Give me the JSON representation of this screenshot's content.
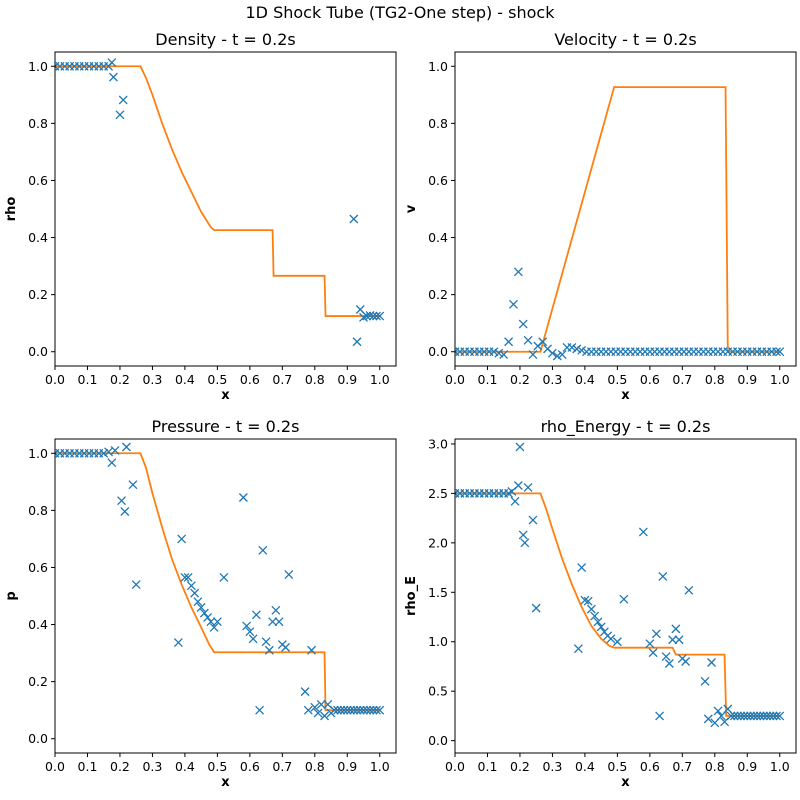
{
  "figure": {
    "suptitle": "1D Shock Tube (TG2-One step) - shock"
  },
  "colors": {
    "reference": "#ff7f0e",
    "markers": "#1f77b4"
  },
  "chart_data": [
    {
      "type": "line",
      "title": "Density - t = 0.2s",
      "xlabel": "x",
      "ylabel": "rho",
      "xlim": [
        0,
        1.05
      ],
      "ylim": [
        -0.05,
        1.05
      ],
      "xticks": [
        "0.0",
        "0.1",
        "0.2",
        "0.3",
        "0.4",
        "0.5",
        "0.6",
        "0.7",
        "0.8",
        "0.9",
        "1.0"
      ],
      "yticks": [
        "0.0",
        "0.2",
        "0.4",
        "0.6",
        "0.8",
        "1.0"
      ],
      "line": [
        [
          0,
          1
        ],
        [
          0.263,
          1
        ],
        [
          0.28,
          0.96
        ],
        [
          0.3,
          0.9
        ],
        [
          0.33,
          0.8
        ],
        [
          0.36,
          0.71
        ],
        [
          0.39,
          0.63
        ],
        [
          0.42,
          0.56
        ],
        [
          0.45,
          0.49
        ],
        [
          0.48,
          0.436
        ],
        [
          0.49,
          0.426
        ],
        [
          0.67,
          0.426
        ],
        [
          0.673,
          0.266
        ],
        [
          0.83,
          0.266
        ],
        [
          0.833,
          0.125
        ],
        [
          1,
          0.125
        ]
      ],
      "points": [
        [
          0,
          1
        ],
        [
          0.015,
          1
        ],
        [
          0.03,
          1
        ],
        [
          0.045,
          1
        ],
        [
          0.06,
          1
        ],
        [
          0.075,
          1
        ],
        [
          0.09,
          1
        ],
        [
          0.105,
          1
        ],
        [
          0.12,
          1
        ],
        [
          0.135,
          1
        ],
        [
          0.15,
          1
        ],
        [
          0.165,
          1
        ],
        [
          0.175,
          1.013
        ],
        [
          0.18,
          0.962
        ],
        [
          0.2,
          0.83
        ],
        [
          0.21,
          0.882
        ],
        [
          0.92,
          0.465
        ],
        [
          0.93,
          0.035
        ],
        [
          0.94,
          0.148
        ],
        [
          0.95,
          0.12
        ],
        [
          0.96,
          0.125
        ],
        [
          0.97,
          0.127
        ],
        [
          0.98,
          0.125
        ],
        [
          0.99,
          0.125
        ],
        [
          1,
          0.125
        ]
      ]
    },
    {
      "type": "line",
      "title": "Velocity - t = 0.2s",
      "xlabel": "x",
      "ylabel": "v",
      "xlim": [
        0,
        1.05
      ],
      "ylim": [
        -0.05,
        1.05
      ],
      "xticks": [
        "0.0",
        "0.1",
        "0.2",
        "0.3",
        "0.4",
        "0.5",
        "0.6",
        "0.7",
        "0.8",
        "0.9",
        "1.0"
      ],
      "yticks": [
        "0.0",
        "0.2",
        "0.4",
        "0.6",
        "0.8",
        "1.0"
      ],
      "line": [
        [
          0,
          0
        ],
        [
          0.263,
          0
        ],
        [
          0.49,
          0.927
        ],
        [
          0.833,
          0.927
        ],
        [
          0.84,
          0
        ],
        [
          1,
          0
        ]
      ],
      "points": [
        [
          0,
          0
        ],
        [
          0.015,
          0
        ],
        [
          0.03,
          0
        ],
        [
          0.045,
          0
        ],
        [
          0.06,
          0
        ],
        [
          0.075,
          0
        ],
        [
          0.09,
          0
        ],
        [
          0.105,
          0
        ],
        [
          0.12,
          0
        ],
        [
          0.135,
          -0.005
        ],
        [
          0.15,
          -0.01
        ],
        [
          0.165,
          0.035
        ],
        [
          0.18,
          0.166
        ],
        [
          0.195,
          0.28
        ],
        [
          0.21,
          0.097
        ],
        [
          0.225,
          0.04
        ],
        [
          0.24,
          -0.01
        ],
        [
          0.255,
          0.02
        ],
        [
          0.27,
          0.035
        ],
        [
          0.285,
          0.01
        ],
        [
          0.3,
          -0.005
        ],
        [
          0.315,
          -0.015
        ],
        [
          0.33,
          -0.01
        ],
        [
          0.345,
          0.015
        ],
        [
          0.36,
          0.015
        ],
        [
          0.375,
          0.01
        ],
        [
          0.39,
          0.005
        ],
        [
          0.405,
          0
        ],
        [
          0.42,
          0
        ],
        [
          0.435,
          0
        ],
        [
          0.45,
          0
        ],
        [
          0.465,
          0
        ],
        [
          0.48,
          0
        ],
        [
          0.495,
          0
        ],
        [
          0.51,
          0
        ],
        [
          0.525,
          0
        ],
        [
          0.54,
          0
        ],
        [
          0.555,
          0
        ],
        [
          0.57,
          0
        ],
        [
          0.585,
          0
        ],
        [
          0.6,
          0
        ],
        [
          0.615,
          0
        ],
        [
          0.63,
          0
        ],
        [
          0.645,
          0
        ],
        [
          0.66,
          0
        ],
        [
          0.675,
          0
        ],
        [
          0.69,
          0
        ],
        [
          0.705,
          0
        ],
        [
          0.72,
          0
        ],
        [
          0.735,
          0
        ],
        [
          0.75,
          0
        ],
        [
          0.765,
          0
        ],
        [
          0.78,
          0
        ],
        [
          0.795,
          0
        ],
        [
          0.81,
          0
        ],
        [
          0.825,
          0
        ],
        [
          0.84,
          0
        ],
        [
          0.855,
          0
        ],
        [
          0.87,
          0
        ],
        [
          0.885,
          0
        ],
        [
          0.9,
          0
        ],
        [
          0.915,
          0
        ],
        [
          0.93,
          0
        ],
        [
          0.945,
          0
        ],
        [
          0.96,
          0
        ],
        [
          0.975,
          0
        ],
        [
          0.99,
          0
        ],
        [
          1,
          0
        ]
      ]
    },
    {
      "type": "line",
      "title": "Pressure - t = 0.2s",
      "xlabel": "x",
      "ylabel": "p",
      "xlim": [
        0,
        1.05
      ],
      "ylim": [
        -0.05,
        1.05
      ],
      "xticks": [
        "0.0",
        "0.1",
        "0.2",
        "0.3",
        "0.4",
        "0.5",
        "0.6",
        "0.7",
        "0.8",
        "0.9",
        "1.0"
      ],
      "yticks": [
        "0.0",
        "0.2",
        "0.4",
        "0.6",
        "0.8",
        "1.0"
      ],
      "line": [
        [
          0,
          1
        ],
        [
          0.263,
          1
        ],
        [
          0.28,
          0.95
        ],
        [
          0.3,
          0.86
        ],
        [
          0.33,
          0.74
        ],
        [
          0.36,
          0.63
        ],
        [
          0.39,
          0.54
        ],
        [
          0.42,
          0.46
        ],
        [
          0.45,
          0.39
        ],
        [
          0.475,
          0.33
        ],
        [
          0.49,
          0.303
        ],
        [
          0.83,
          0.303
        ],
        [
          0.833,
          0.1
        ],
        [
          1,
          0.1
        ]
      ],
      "points": [
        [
          0,
          1
        ],
        [
          0.015,
          1
        ],
        [
          0.03,
          1
        ],
        [
          0.045,
          1
        ],
        [
          0.06,
          1
        ],
        [
          0.075,
          1
        ],
        [
          0.09,
          1
        ],
        [
          0.105,
          1
        ],
        [
          0.12,
          1
        ],
        [
          0.135,
          1
        ],
        [
          0.15,
          1
        ],
        [
          0.165,
          1.005
        ],
        [
          0.175,
          0.967
        ],
        [
          0.185,
          1.01
        ],
        [
          0.205,
          0.834
        ],
        [
          0.215,
          0.796
        ],
        [
          0.22,
          1.022
        ],
        [
          0.24,
          0.89
        ],
        [
          0.25,
          0.54
        ],
        [
          0.38,
          0.337
        ],
        [
          0.39,
          0.7
        ],
        [
          0.4,
          0.565
        ],
        [
          0.41,
          0.565
        ],
        [
          0.42,
          0.536
        ],
        [
          0.43,
          0.51
        ],
        [
          0.44,
          0.48
        ],
        [
          0.45,
          0.46
        ],
        [
          0.46,
          0.44
        ],
        [
          0.47,
          0.425
        ],
        [
          0.48,
          0.41
        ],
        [
          0.49,
          0.39
        ],
        [
          0.5,
          0.41
        ],
        [
          0.52,
          0.565
        ],
        [
          0.58,
          0.845
        ],
        [
          0.59,
          0.395
        ],
        [
          0.6,
          0.375
        ],
        [
          0.61,
          0.35
        ],
        [
          0.62,
          0.434
        ],
        [
          0.63,
          0.1
        ],
        [
          0.64,
          0.66
        ],
        [
          0.65,
          0.34
        ],
        [
          0.66,
          0.31
        ],
        [
          0.67,
          0.41
        ],
        [
          0.68,
          0.45
        ],
        [
          0.69,
          0.41
        ],
        [
          0.7,
          0.33
        ],
        [
          0.71,
          0.32
        ],
        [
          0.72,
          0.575
        ],
        [
          0.77,
          0.165
        ],
        [
          0.78,
          0.1
        ],
        [
          0.79,
          0.31
        ],
        [
          0.8,
          0.11
        ],
        [
          0.81,
          0.09
        ],
        [
          0.82,
          0.12
        ],
        [
          0.83,
          0.08
        ],
        [
          0.84,
          0.12
        ],
        [
          0.85,
          0.09
        ],
        [
          0.86,
          0.1
        ],
        [
          0.87,
          0.1
        ],
        [
          0.88,
          0.1
        ],
        [
          0.89,
          0.1
        ],
        [
          0.9,
          0.1
        ],
        [
          0.91,
          0.1
        ],
        [
          0.92,
          0.1
        ],
        [
          0.93,
          0.1
        ],
        [
          0.94,
          0.1
        ],
        [
          0.95,
          0.1
        ],
        [
          0.96,
          0.1
        ],
        [
          0.97,
          0.1
        ],
        [
          0.98,
          0.1
        ],
        [
          0.99,
          0.1
        ],
        [
          1,
          0.1
        ]
      ]
    },
    {
      "type": "line",
      "title": "rho_Energy - t = 0.2s",
      "xlabel": "x",
      "ylabel": "rho_E",
      "xlim": [
        0,
        1.05
      ],
      "ylim": [
        -0.125,
        3.05
      ],
      "xticks": [
        "0.0",
        "0.1",
        "0.2",
        "0.3",
        "0.4",
        "0.5",
        "0.6",
        "0.7",
        "0.8",
        "0.9",
        "1.0"
      ],
      "yticks": [
        "0.0",
        "0.5",
        "1.0",
        "1.5",
        "2.0",
        "2.5",
        "3.0"
      ],
      "line": [
        [
          0,
          2.5
        ],
        [
          0.263,
          2.5
        ],
        [
          0.28,
          2.35
        ],
        [
          0.3,
          2.14
        ],
        [
          0.33,
          1.84
        ],
        [
          0.36,
          1.58
        ],
        [
          0.39,
          1.35
        ],
        [
          0.42,
          1.16
        ],
        [
          0.45,
          1.03
        ],
        [
          0.475,
          0.96
        ],
        [
          0.49,
          0.94
        ],
        [
          0.67,
          0.94
        ],
        [
          0.68,
          0.87
        ],
        [
          0.83,
          0.87
        ],
        [
          0.835,
          0.25
        ],
        [
          1,
          0.25
        ]
      ],
      "points": [
        [
          0,
          2.5
        ],
        [
          0.015,
          2.5
        ],
        [
          0.03,
          2.5
        ],
        [
          0.045,
          2.5
        ],
        [
          0.06,
          2.5
        ],
        [
          0.075,
          2.5
        ],
        [
          0.09,
          2.5
        ],
        [
          0.105,
          2.5
        ],
        [
          0.12,
          2.5
        ],
        [
          0.135,
          2.5
        ],
        [
          0.15,
          2.5
        ],
        [
          0.165,
          2.5
        ],
        [
          0.175,
          2.52
        ],
        [
          0.185,
          2.42
        ],
        [
          0.195,
          2.58
        ],
        [
          0.2,
          2.97
        ],
        [
          0.21,
          2.08
        ],
        [
          0.215,
          2.0
        ],
        [
          0.225,
          2.56
        ],
        [
          0.24,
          2.23
        ],
        [
          0.25,
          1.34
        ],
        [
          0.38,
          0.93
        ],
        [
          0.39,
          1.75
        ],
        [
          0.4,
          1.42
        ],
        [
          0.41,
          1.41
        ],
        [
          0.42,
          1.33
        ],
        [
          0.43,
          1.26
        ],
        [
          0.44,
          1.2
        ],
        [
          0.45,
          1.15
        ],
        [
          0.46,
          1.1
        ],
        [
          0.47,
          1.06
        ],
        [
          0.48,
          1.03
        ],
        [
          0.5,
          1.0
        ],
        [
          0.52,
          1.43
        ],
        [
          0.58,
          2.11
        ],
        [
          0.6,
          0.98
        ],
        [
          0.61,
          0.89
        ],
        [
          0.62,
          1.08
        ],
        [
          0.63,
          0.25
        ],
        [
          0.64,
          1.66
        ],
        [
          0.65,
          0.85
        ],
        [
          0.66,
          0.78
        ],
        [
          0.67,
          1.02
        ],
        [
          0.68,
          1.13
        ],
        [
          0.69,
          1.02
        ],
        [
          0.7,
          0.83
        ],
        [
          0.71,
          0.8
        ],
        [
          0.72,
          1.52
        ],
        [
          0.77,
          0.6
        ],
        [
          0.78,
          0.22
        ],
        [
          0.79,
          0.79
        ],
        [
          0.8,
          0.18
        ],
        [
          0.81,
          0.3
        ],
        [
          0.82,
          0.25
        ],
        [
          0.83,
          0.19
        ],
        [
          0.84,
          0.32
        ],
        [
          0.85,
          0.25
        ],
        [
          0.86,
          0.25
        ],
        [
          0.87,
          0.25
        ],
        [
          0.88,
          0.25
        ],
        [
          0.89,
          0.25
        ],
        [
          0.9,
          0.25
        ],
        [
          0.91,
          0.25
        ],
        [
          0.92,
          0.25
        ],
        [
          0.93,
          0.25
        ],
        [
          0.94,
          0.25
        ],
        [
          0.95,
          0.25
        ],
        [
          0.96,
          0.25
        ],
        [
          0.97,
          0.25
        ],
        [
          0.98,
          0.25
        ],
        [
          0.99,
          0.25
        ],
        [
          1,
          0.25
        ]
      ]
    }
  ]
}
